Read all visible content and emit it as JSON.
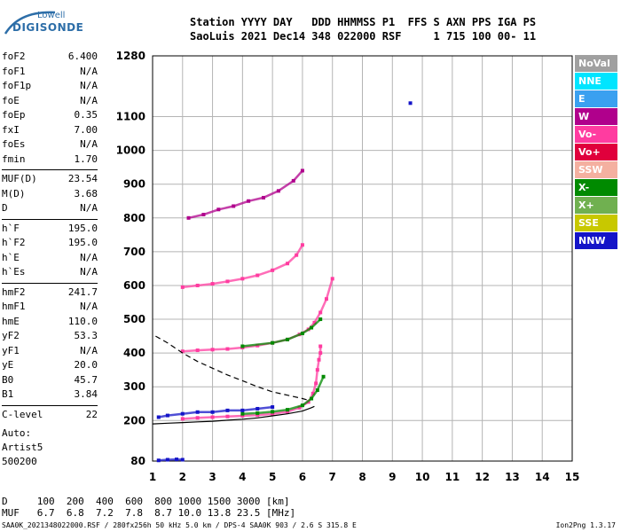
{
  "logo": {
    "line1": "Lowell",
    "line2": "DIGISONDE"
  },
  "header": {
    "line1": "Station YYYY DAY   DDD HHMMSS P1  FFS S AXN PPS IGA PS",
    "line2": "SaoLuis 2021 Dec14 348 022000 RSF     1 715 100 00- 11"
  },
  "params": [
    {
      "k": "foF2",
      "v": "6.400"
    },
    {
      "k": "foF1",
      "v": "N/A"
    },
    {
      "k": "foF1p",
      "v": "N/A"
    },
    {
      "k": "foE",
      "v": "N/A"
    },
    {
      "k": "foEp",
      "v": "0.35"
    },
    {
      "k": "fxI",
      "v": "7.00"
    },
    {
      "k": "foEs",
      "v": "N/A"
    },
    {
      "k": "fmin",
      "v": "1.70"
    },
    {
      "k": "MUF(D)",
      "v": "23.54"
    },
    {
      "k": "M(D)",
      "v": "3.68"
    },
    {
      "k": "D",
      "v": "N/A"
    },
    {
      "k": "h`F",
      "v": "195.0"
    },
    {
      "k": "h`F2",
      "v": "195.0"
    },
    {
      "k": "h`E",
      "v": "N/A"
    },
    {
      "k": "h`Es",
      "v": "N/A"
    },
    {
      "k": "hmF2",
      "v": "241.7"
    },
    {
      "k": "hmF1",
      "v": "N/A"
    },
    {
      "k": "hmE",
      "v": "110.0"
    },
    {
      "k": "yF2",
      "v": "53.3"
    },
    {
      "k": "yF1",
      "v": "N/A"
    },
    {
      "k": "yE",
      "v": "20.0"
    },
    {
      "k": "B0",
      "v": "45.7"
    },
    {
      "k": "B1",
      "v": "3.84"
    },
    {
      "k": "C-level",
      "v": "22"
    }
  ],
  "auto": {
    "l1": "Auto:",
    "l2": "Artist5",
    "l3": "500200"
  },
  "legend": [
    {
      "label": "NoVal",
      "color": "#a0a0a0"
    },
    {
      "label": "NNE",
      "color": "#00e5ff"
    },
    {
      "label": "E",
      "color": "#3aa0f0"
    },
    {
      "label": "W",
      "color": "#b0008c"
    },
    {
      "label": "Vo-",
      "color": "#ff3ca0"
    },
    {
      "label": "Vo+",
      "color": "#e0003c"
    },
    {
      "label": "SSW",
      "color": "#f4b0a0"
    },
    {
      "label": "X-",
      "color": "#008a00"
    },
    {
      "label": "X+",
      "color": "#70b050"
    },
    {
      "label": "SSE",
      "color": "#c8c800"
    },
    {
      "label": "NNW",
      "color": "#1414c8"
    }
  ],
  "bottom": {
    "line1": "D     100  200  400  600  800 1000 1500 3000 [km]",
    "line2": "MUF   6.7  6.8  7.2  7.8  8.7 10.0 13.8 23.5 [MHz]"
  },
  "footer": "SAA0K_2021348022000.RSF / 280fx256h 50 kHz 5.0 km / DPS-4 SAA0K 903 / 2.6 S 315.8 E",
  "version": "Ion2Png 1.3.17",
  "chart_data": {
    "type": "scatter",
    "title": "",
    "xlabel": "",
    "ylabel": "",
    "xlim": [
      1,
      15
    ],
    "ylim": [
      80,
      1280
    ],
    "x_ticks": [
      1,
      2,
      3,
      4,
      5,
      6,
      7,
      8,
      9,
      10,
      11,
      12,
      13,
      14,
      15
    ],
    "y_ticks": [
      80,
      200,
      300,
      400,
      500,
      600,
      700,
      800,
      900,
      1000,
      1100,
      1280
    ],
    "grid": true,
    "series": [
      {
        "name": "Vo-",
        "color": "#ff3ca0",
        "x": [
          2.0,
          2.5,
          3.0,
          3.5,
          4.0,
          4.5,
          5.0,
          5.5,
          5.9,
          6.2,
          6.35,
          6.45,
          6.5,
          6.55,
          6.6,
          6.6
        ],
        "y": [
          205,
          208,
          210,
          212,
          214,
          216,
          220,
          226,
          238,
          255,
          280,
          310,
          350,
          380,
          400,
          420
        ]
      },
      {
        "name": "Vo-",
        "color": "#ff3ca0",
        "x": [
          2.0,
          2.5,
          3.0,
          3.5,
          4.0,
          4.5,
          5.0,
          5.5,
          5.9,
          6.2,
          6.4,
          6.6,
          6.8,
          7.0
        ],
        "y": [
          405,
          408,
          410,
          412,
          416,
          422,
          430,
          440,
          455,
          470,
          490,
          520,
          560,
          620
        ]
      },
      {
        "name": "Vo-",
        "color": "#ff3ca0",
        "x": [
          2.0,
          2.5,
          3.0,
          3.5,
          4.0,
          4.5,
          5.0,
          5.5,
          5.8,
          6.0
        ],
        "y": [
          595,
          600,
          605,
          612,
          620,
          630,
          645,
          665,
          690,
          720
        ]
      },
      {
        "name": "X-",
        "color": "#008a00",
        "x": [
          4.0,
          4.5,
          5.0,
          5.5,
          6.0,
          6.3,
          6.5,
          6.7
        ],
        "y": [
          220,
          222,
          226,
          232,
          245,
          265,
          290,
          330
        ]
      },
      {
        "name": "X-",
        "color": "#008a00",
        "x": [
          4.0,
          5.0,
          5.5,
          6.0,
          6.3,
          6.6
        ],
        "y": [
          420,
          430,
          440,
          458,
          475,
          500
        ]
      },
      {
        "name": "NNW",
        "color": "#1414c8",
        "x": [
          1.2,
          1.5,
          2.0,
          2.5,
          3.0,
          3.5,
          4.0,
          4.5,
          5.0
        ],
        "y": [
          210,
          215,
          220,
          225,
          225,
          230,
          230,
          235,
          240
        ]
      },
      {
        "name": "NNW",
        "color": "#1414c8",
        "x": [
          1.2,
          1.5,
          1.8,
          2.0
        ],
        "y": [
          82,
          84,
          85,
          84
        ]
      },
      {
        "name": "W",
        "color": "#b0008c",
        "x": [
          2.2,
          2.7,
          3.2,
          3.7,
          4.2,
          4.7,
          5.2,
          5.7,
          6.0
        ],
        "y": [
          800,
          810,
          825,
          835,
          850,
          860,
          880,
          910,
          940
        ]
      },
      {
        "name": "NNW",
        "color": "#1414c8",
        "x": [
          9.6
        ],
        "y": [
          1140
        ]
      }
    ],
    "profile": {
      "x": [
        1.0,
        1.5,
        2.0,
        2.5,
        3.0,
        3.5,
        4.0,
        4.5,
        5.0,
        5.5,
        6.0,
        6.3,
        6.4
      ],
      "y": [
        190,
        192,
        194,
        196,
        198,
        201,
        204,
        208,
        214,
        220,
        228,
        238,
        242
      ]
    },
    "dashed_profile": {
      "x": [
        1.1,
        1.5,
        2.0,
        2.5,
        3.0,
        3.5,
        4.0,
        4.5,
        5.0,
        5.5,
        6.0,
        6.2
      ],
      "y": [
        450,
        430,
        400,
        375,
        355,
        335,
        318,
        300,
        285,
        275,
        265,
        260
      ]
    }
  }
}
